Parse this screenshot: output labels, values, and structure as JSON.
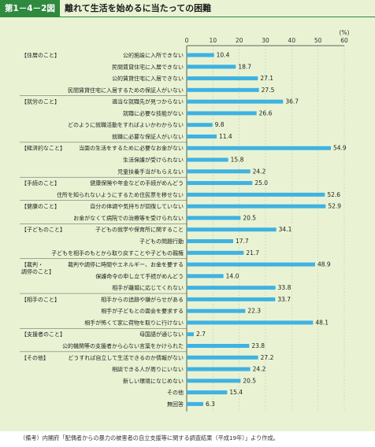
{
  "header": {
    "figure_number": "第1－4－2図",
    "title": "離れて生活を始めるに当たっての困難"
  },
  "note": "（備考）内閣府「配偶者からの暴力の被害者の自立支援等に関する調査結果（平成19年）」より作成。",
  "colors": {
    "bar": "#3fb2e2",
    "accent": "#2f8a3f",
    "background": "#e9f3d3"
  },
  "chart_data": {
    "type": "bar",
    "orientation": "horizontal",
    "unit": "(%)",
    "xlim": [
      0,
      60
    ],
    "ticks": [
      0,
      10,
      20,
      30,
      40,
      50,
      60
    ],
    "groups": [
      {
        "label": "【住居のこと】",
        "items": [
          {
            "label": "公的施設に入所できない",
            "value": 10.4
          },
          {
            "label": "民間賃貸住宅に入居できない",
            "value": 18.7
          },
          {
            "label": "公的賃貸住宅に入居できない",
            "value": 27.1
          },
          {
            "label": "民間賃貸住宅に入居するための保証人がいない",
            "value": 27.5
          }
        ]
      },
      {
        "label": "【就労のこと】",
        "items": [
          {
            "label": "適当な就職先が見つからない",
            "value": 36.7
          },
          {
            "label": "就職に必要な技能がない",
            "value": 26.6
          },
          {
            "label": "どのように就職活動をすればよいかわからない",
            "value": 9.8
          },
          {
            "label": "就職に必要な保証人がいない",
            "value": 11.4
          }
        ]
      },
      {
        "label": "【経済的なこと】",
        "items": [
          {
            "label": "当面の生活をするために必要なお金がない",
            "value": 54.9
          },
          {
            "label": "生活保護が受けられない",
            "value": 15.8
          },
          {
            "label": "児童扶養手当がもらえない",
            "value": 24.2
          }
        ]
      },
      {
        "label": "【手続のこと】",
        "items": [
          {
            "label": "健康保険や年金などの手続がめんどう",
            "value": 25.0
          },
          {
            "label": "住所を知られないようにするため住民票を移せない",
            "value": 52.6
          }
        ]
      },
      {
        "label": "【健康のこと】",
        "items": [
          {
            "label": "自分の体調や気持ちが回復していない",
            "value": 52.9
          },
          {
            "label": "お金がなくて病院での治療等を受けられない",
            "value": 20.5
          }
        ]
      },
      {
        "label": "【子どものこと】",
        "items": [
          {
            "label": "子どもの就学や保育所に関すること",
            "value": 34.1
          },
          {
            "label": "子どもの問題行動",
            "value": 17.7
          },
          {
            "label": "子どもを相手のもとから取り戻すことや子どもの親権",
            "value": 21.7
          }
        ]
      },
      {
        "label": "【裁判・調停のこと】",
        "label_lines": [
          "【裁判・",
          "調停のこと】"
        ],
        "items": [
          {
            "label": "裁判や調停に時間やエネルギー、お金を要する",
            "value": 48.9
          },
          {
            "label": "保護命令の申し立て手続がめんどう",
            "value": 14.0
          },
          {
            "label": "相手が離婚に応じてくれない",
            "value": 33.8
          }
        ]
      },
      {
        "label": "【相手のこと】",
        "items": [
          {
            "label": "相手からの追跡や嫌がらせがある",
            "value": 33.7
          },
          {
            "label": "相手が子どもとの面会を要求する",
            "value": 22.3
          },
          {
            "label": "相手が怖くて家に荷物を取りに行けない",
            "value": 48.1
          }
        ]
      },
      {
        "label": "【支援者のこと】",
        "items": [
          {
            "label": "母国語が通じない",
            "value": 2.7
          },
          {
            "label": "公的機関等の支援者から心ない言葉をかけられた",
            "value": 23.8
          }
        ]
      },
      {
        "label": "【その他】",
        "items": [
          {
            "label": "どうすれば自立して生活できるのか情報がない",
            "value": 27.2
          },
          {
            "label": "相談できる人が周りにいない",
            "value": 24.2
          },
          {
            "label": "新しい環境になじめない",
            "value": 20.5
          },
          {
            "label": "その他",
            "value": 15.4
          },
          {
            "label": "無回答",
            "value": 6.3
          }
        ]
      }
    ]
  }
}
